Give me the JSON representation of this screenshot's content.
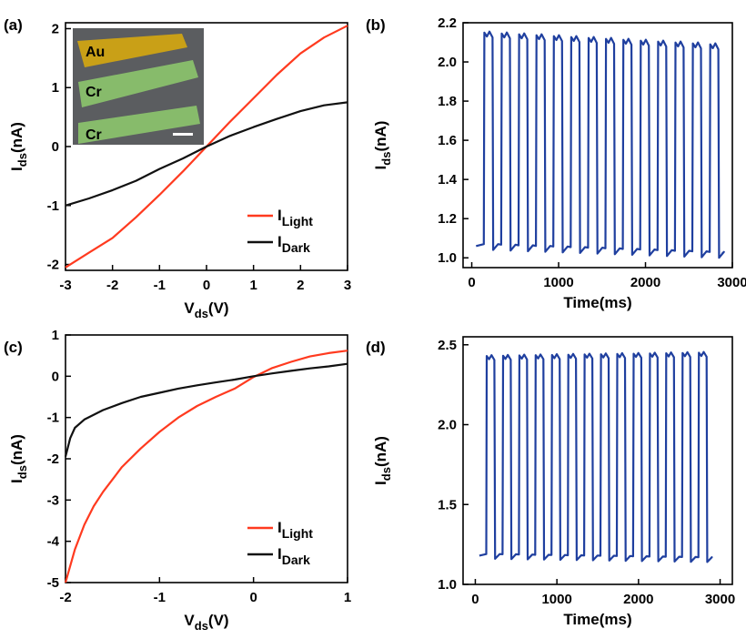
{
  "colors": {
    "light": "#ff3a1f",
    "dark": "#111111",
    "pulse": "#1f3f9f",
    "au": "#c9a017",
    "cr": "#8cc56d",
    "inset_bg": "#5b5d60"
  },
  "panels": {
    "a": {
      "label": "(a)",
      "xlabel_main": "V",
      "xlabel_sub": "ds",
      "xlabel_unit": "(V)",
      "ylabel_main": "I",
      "ylabel_sub": "ds",
      "ylabel_unit": "(nA)",
      "legend": [
        {
          "main": "I",
          "sub": "Light",
          "series": "light"
        },
        {
          "main": "I",
          "sub": "Dark",
          "series": "dark"
        }
      ],
      "inset": {
        "labels": [
          "Au",
          "Cr",
          "Cr"
        ]
      }
    },
    "b": {
      "label": "(b)",
      "xlabel": "Time(ms)",
      "ylabel_main": "I",
      "ylabel_sub": "ds",
      "ylabel_unit": "(nA)"
    },
    "c": {
      "label": "(c)",
      "xlabel_main": "V",
      "xlabel_sub": "ds",
      "xlabel_unit": "(V)",
      "ylabel_main": "I",
      "ylabel_sub": "ds",
      "ylabel_unit": "(nA)",
      "legend": [
        {
          "main": "I",
          "sub": "Light",
          "series": "light"
        },
        {
          "main": "I",
          "sub": "Dark",
          "series": "dark"
        }
      ]
    },
    "d": {
      "label": "(d)",
      "xlabel": "Time(ms)",
      "ylabel_main": "I",
      "ylabel_sub": "ds",
      "ylabel_unit": "(nA)"
    }
  },
  "chart_data": [
    {
      "panel": "a",
      "type": "line",
      "xlim": [
        -3,
        3
      ],
      "ylim": [
        -2.1,
        2.1
      ],
      "xticks": [
        -3,
        -2,
        -1,
        0,
        1,
        2,
        3
      ],
      "yticks": [
        -2,
        -1,
        0,
        1,
        2
      ],
      "series": [
        {
          "name": "I_Light",
          "color_key": "light",
          "x": [
            -3,
            -2.5,
            -2,
            -1.5,
            -1,
            -0.5,
            0,
            0.5,
            1,
            1.5,
            2,
            2.5,
            3
          ],
          "y": [
            -2.05,
            -1.8,
            -1.55,
            -1.2,
            -0.82,
            -0.42,
            0.0,
            0.42,
            0.82,
            1.22,
            1.58,
            1.85,
            2.05
          ]
        },
        {
          "name": "I_Dark",
          "color_key": "dark",
          "x": [
            -3,
            -2.5,
            -2,
            -1.5,
            -1,
            -0.5,
            0,
            0.5,
            1,
            1.5,
            2,
            2.5,
            3
          ],
          "y": [
            -1.0,
            -0.88,
            -0.74,
            -0.58,
            -0.38,
            -0.2,
            0.0,
            0.18,
            0.33,
            0.47,
            0.6,
            0.7,
            0.75
          ]
        }
      ]
    },
    {
      "panel": "b",
      "type": "line",
      "xlim": [
        -100,
        3000
      ],
      "ylim": [
        0.95,
        2.2
      ],
      "xticks": [
        0,
        1000,
        2000,
        3000
      ],
      "yticks": [
        1.0,
        1.2,
        1.4,
        1.6,
        1.8,
        2.0,
        2.2
      ],
      "ytick_decimals": 1,
      "pulse": {
        "t_start": 50,
        "t_end": 2880,
        "first_rise": 145,
        "period": 200,
        "on_duration": 98,
        "cycles": 14,
        "on_level": [
          2.15,
          2.09
        ],
        "off_level": [
          1.06,
          1.02
        ]
      }
    },
    {
      "panel": "c",
      "type": "line",
      "xlim": [
        -2,
        1
      ],
      "ylim": [
        -5,
        1
      ],
      "xticks": [
        -2,
        -1,
        0,
        1
      ],
      "yticks": [
        -5,
        -4,
        -3,
        -2,
        -1,
        0,
        1
      ],
      "series": [
        {
          "name": "I_Light",
          "color_key": "light",
          "x": [
            -2,
            -1.9,
            -1.8,
            -1.7,
            -1.6,
            -1.5,
            -1.4,
            -1.2,
            -1.0,
            -0.8,
            -0.6,
            -0.4,
            -0.2,
            0,
            0.2,
            0.4,
            0.6,
            0.8,
            1.0
          ],
          "y": [
            -5.0,
            -4.2,
            -3.6,
            -3.15,
            -2.8,
            -2.5,
            -2.2,
            -1.75,
            -1.35,
            -1.0,
            -0.72,
            -0.5,
            -0.3,
            -0.02,
            0.2,
            0.35,
            0.48,
            0.56,
            0.62
          ]
        },
        {
          "name": "I_Dark",
          "color_key": "dark",
          "x": [
            -2,
            -1.95,
            -1.9,
            -1.8,
            -1.6,
            -1.4,
            -1.2,
            -1.0,
            -0.8,
            -0.6,
            -0.4,
            -0.2,
            0,
            0.2,
            0.4,
            0.6,
            0.8,
            1.0
          ],
          "y": [
            -1.95,
            -1.5,
            -1.25,
            -1.05,
            -0.82,
            -0.65,
            -0.5,
            -0.4,
            -0.3,
            -0.22,
            -0.15,
            -0.08,
            0.0,
            0.07,
            0.13,
            0.19,
            0.24,
            0.3
          ]
        }
      ]
    },
    {
      "panel": "d",
      "type": "line",
      "xlim": [
        -150,
        3150
      ],
      "ylim": [
        1.0,
        2.55
      ],
      "xticks": [
        0,
        1000,
        2000,
        3000
      ],
      "yticks": [
        1.0,
        1.5,
        2.0,
        2.5
      ],
      "ytick_decimals": 1,
      "pulse": {
        "t_start": 50,
        "t_end": 2880,
        "first_rise": 140,
        "period": 200,
        "on_duration": 98,
        "cycles": 14,
        "on_level": [
          2.43,
          2.45
        ],
        "off_level": [
          1.18,
          1.16
        ]
      }
    }
  ]
}
